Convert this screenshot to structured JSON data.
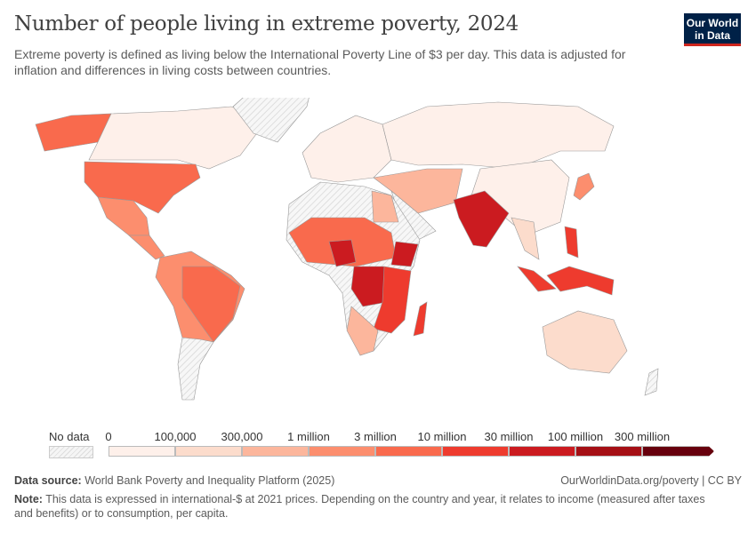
{
  "header": {
    "title": "Number of people living in extreme poverty, 2024",
    "subtitle": "Extreme poverty is defined as living below the International Poverty Line of $3 per day. This data is adjusted for inflation and differences in living costs between countries.",
    "logo": "Our World in Data"
  },
  "legend": {
    "no_data": "No data",
    "labels": [
      "0",
      "100,000",
      "300,000",
      "1 million",
      "3 million",
      "10 million",
      "30 million",
      "100 million",
      "300 million"
    ],
    "colors": [
      "#fef0ea",
      "#fcdccc",
      "#fcb69c",
      "#fc8e6e",
      "#f96a4d",
      "#ee3b2e",
      "#cb1b20",
      "#a50f15",
      "#67000d"
    ]
  },
  "map": {
    "no_data_pattern": "hatched-gray"
  },
  "footer": {
    "source_label": "Data source:",
    "source": "World Bank Poverty and Inequality Platform (2025)",
    "link": "OurWorldinData.org/poverty | CC BY",
    "note_label": "Note:",
    "note": "This data is expressed in international-$ at 2021 prices. Depending on the country and year, it relates to income (measured after taxes and benefits) or to consumption, per capita."
  }
}
